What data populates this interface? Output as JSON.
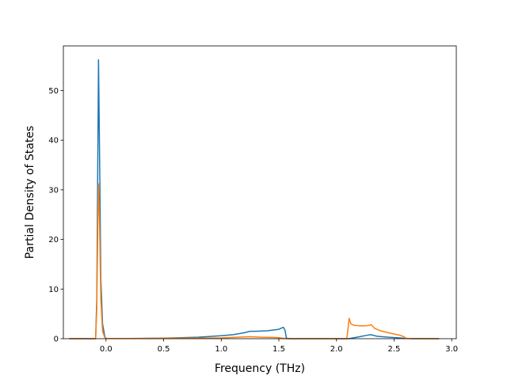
{
  "chart_data": {
    "type": "line",
    "title": "",
    "xlabel": "Frequency (THz)",
    "ylabel": "Partial Density of States",
    "xlim": [
      -0.37,
      3.04
    ],
    "ylim": [
      0,
      59
    ],
    "xticks": [
      0.0,
      0.5,
      1.0,
      1.5,
      2.0,
      2.5,
      3.0
    ],
    "xtick_labels": [
      "0.0",
      "0.5",
      "1.0",
      "1.5",
      "2.0",
      "2.5",
      "3.0"
    ],
    "yticks": [
      0,
      10,
      20,
      30,
      40,
      50
    ],
    "ytick_labels": [
      "0",
      "10",
      "20",
      "30",
      "40",
      "50"
    ],
    "grid": false,
    "legend": "none",
    "series": [
      {
        "color": "#1f77b4",
        "points": [
          [
            -0.32,
            0
          ],
          [
            -0.09,
            0
          ],
          [
            -0.08,
            8
          ],
          [
            -0.07,
            40
          ],
          [
            -0.065,
            56.2
          ],
          [
            -0.055,
            35
          ],
          [
            -0.045,
            12
          ],
          [
            -0.03,
            3
          ],
          [
            -0.01,
            0.4
          ],
          [
            0.0,
            0.05
          ],
          [
            0.2,
            0.05
          ],
          [
            0.5,
            0.1
          ],
          [
            0.8,
            0.3
          ],
          [
            1.0,
            0.6
          ],
          [
            1.1,
            0.8
          ],
          [
            1.2,
            1.2
          ],
          [
            1.25,
            1.5
          ],
          [
            1.3,
            1.5
          ],
          [
            1.4,
            1.6
          ],
          [
            1.5,
            1.9
          ],
          [
            1.54,
            2.3
          ],
          [
            1.555,
            1.6
          ],
          [
            1.565,
            0.1
          ],
          [
            1.6,
            0
          ],
          [
            2.11,
            0
          ],
          [
            2.13,
            0.1
          ],
          [
            2.2,
            0.4
          ],
          [
            2.28,
            0.75
          ],
          [
            2.3,
            0.8
          ],
          [
            2.35,
            0.5
          ],
          [
            2.45,
            0.3
          ],
          [
            2.55,
            0.15
          ],
          [
            2.6,
            0.05
          ],
          [
            2.7,
            0.02
          ],
          [
            2.89,
            0
          ]
        ]
      },
      {
        "color": "#ff7f0e",
        "points": [
          [
            -0.32,
            0
          ],
          [
            -0.09,
            0
          ],
          [
            -0.08,
            6
          ],
          [
            -0.07,
            25
          ],
          [
            -0.065,
            31.2
          ],
          [
            -0.055,
            22
          ],
          [
            -0.045,
            8
          ],
          [
            -0.03,
            1.5
          ],
          [
            -0.01,
            0.2
          ],
          [
            0.0,
            0.05
          ],
          [
            0.3,
            0.05
          ],
          [
            0.6,
            0.1
          ],
          [
            1.0,
            0.15
          ],
          [
            1.2,
            0.35
          ],
          [
            1.25,
            0.4
          ],
          [
            1.35,
            0.3
          ],
          [
            1.45,
            0.25
          ],
          [
            1.5,
            0.2
          ],
          [
            1.55,
            0.05
          ],
          [
            1.58,
            0
          ],
          [
            2.09,
            0
          ],
          [
            2.1,
            2.0
          ],
          [
            2.11,
            4.1
          ],
          [
            2.125,
            3.0
          ],
          [
            2.15,
            2.7
          ],
          [
            2.2,
            2.6
          ],
          [
            2.25,
            2.6
          ],
          [
            2.29,
            2.7
          ],
          [
            2.3,
            2.85
          ],
          [
            2.33,
            2.1
          ],
          [
            2.38,
            1.6
          ],
          [
            2.45,
            1.2
          ],
          [
            2.55,
            0.7
          ],
          [
            2.59,
            0.35
          ],
          [
            2.6,
            0.1
          ],
          [
            2.65,
            0
          ],
          [
            2.89,
            0
          ]
        ]
      }
    ]
  }
}
